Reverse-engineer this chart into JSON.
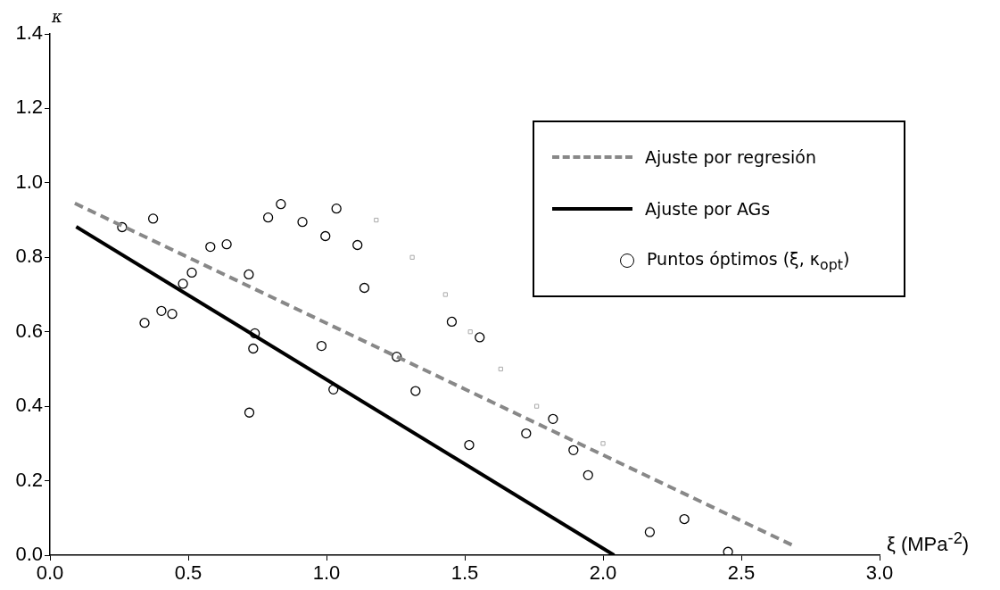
{
  "chart_data": {
    "type": "scatter",
    "xlabel": "ξ (MPa$^{-2}$)",
    "ylabel": "κ",
    "xlim": [
      0,
      3
    ],
    "ylim": [
      0,
      1.4
    ],
    "xticks": [
      {
        "value": 0,
        "label": "0.0"
      },
      0.5,
      {
        "value": 1,
        "label": "1.0"
      },
      1.5,
      {
        "value": 2,
        "label": "2.0"
      },
      2.5,
      {
        "value": 3,
        "label": "3.0"
      }
    ],
    "yticks": [
      {
        "value": 0,
        "label": "0.0"
      },
      0.2,
      0.4,
      0.6,
      0.8,
      {
        "value": 1,
        "label": "1.0"
      },
      1.2,
      1.4
    ],
    "grid": false,
    "legend": "top right",
    "series": [
      {
        "name": "Ajuste por regresión",
        "type": "line",
        "color": "#888888",
        "line_style": "dashed",
        "marker": "none",
        "x": [
          0.09,
          2.69
        ],
        "values": [
          0.945,
          0.025
        ]
      },
      {
        "name": "Ajuste por AGs",
        "type": "line",
        "color": "#000000",
        "line_style": "solid",
        "marker": "none",
        "x": [
          0.095,
          2.04
        ],
        "values": [
          0.882,
          0.0
        ]
      },
      {
        "name": "Puntos óptimos (ξ, κ$_{opt}$)",
        "type": "scatter",
        "color": "#000000",
        "marker": "circle",
        "x": [
          0.261,
          0.373,
          0.342,
          0.403,
          0.442,
          0.481,
          0.513,
          0.58,
          0.639,
          0.719,
          0.741,
          0.735,
          0.721,
          0.789,
          0.835,
          0.913,
          0.996,
          1.036,
          0.982,
          1.025,
          1.112,
          1.137,
          1.453,
          1.554,
          1.254,
          1.322,
          1.516,
          1.722,
          1.819,
          1.893,
          1.946,
          2.169,
          2.294,
          2.452
        ],
        "values": [
          0.881,
          0.904,
          0.624,
          0.656,
          0.648,
          0.729,
          0.759,
          0.828,
          0.835,
          0.754,
          0.596,
          0.555,
          0.383,
          0.907,
          0.943,
          0.895,
          0.857,
          0.931,
          0.562,
          0.445,
          0.833,
          0.718,
          0.627,
          0.585,
          0.533,
          0.441,
          0.296,
          0.327,
          0.366,
          0.282,
          0.215,
          0.062,
          0.097,
          0.009
        ]
      },
      {
        "type": "scatter",
        "color": "#aaaaaa",
        "marker": "square",
        "x": [
          1.18,
          1.31,
          1.43,
          1.52,
          1.63,
          1.76,
          2.0
        ],
        "values": [
          0.9,
          0.8,
          0.7,
          0.6,
          0.5,
          0.4,
          0.3
        ]
      }
    ]
  }
}
